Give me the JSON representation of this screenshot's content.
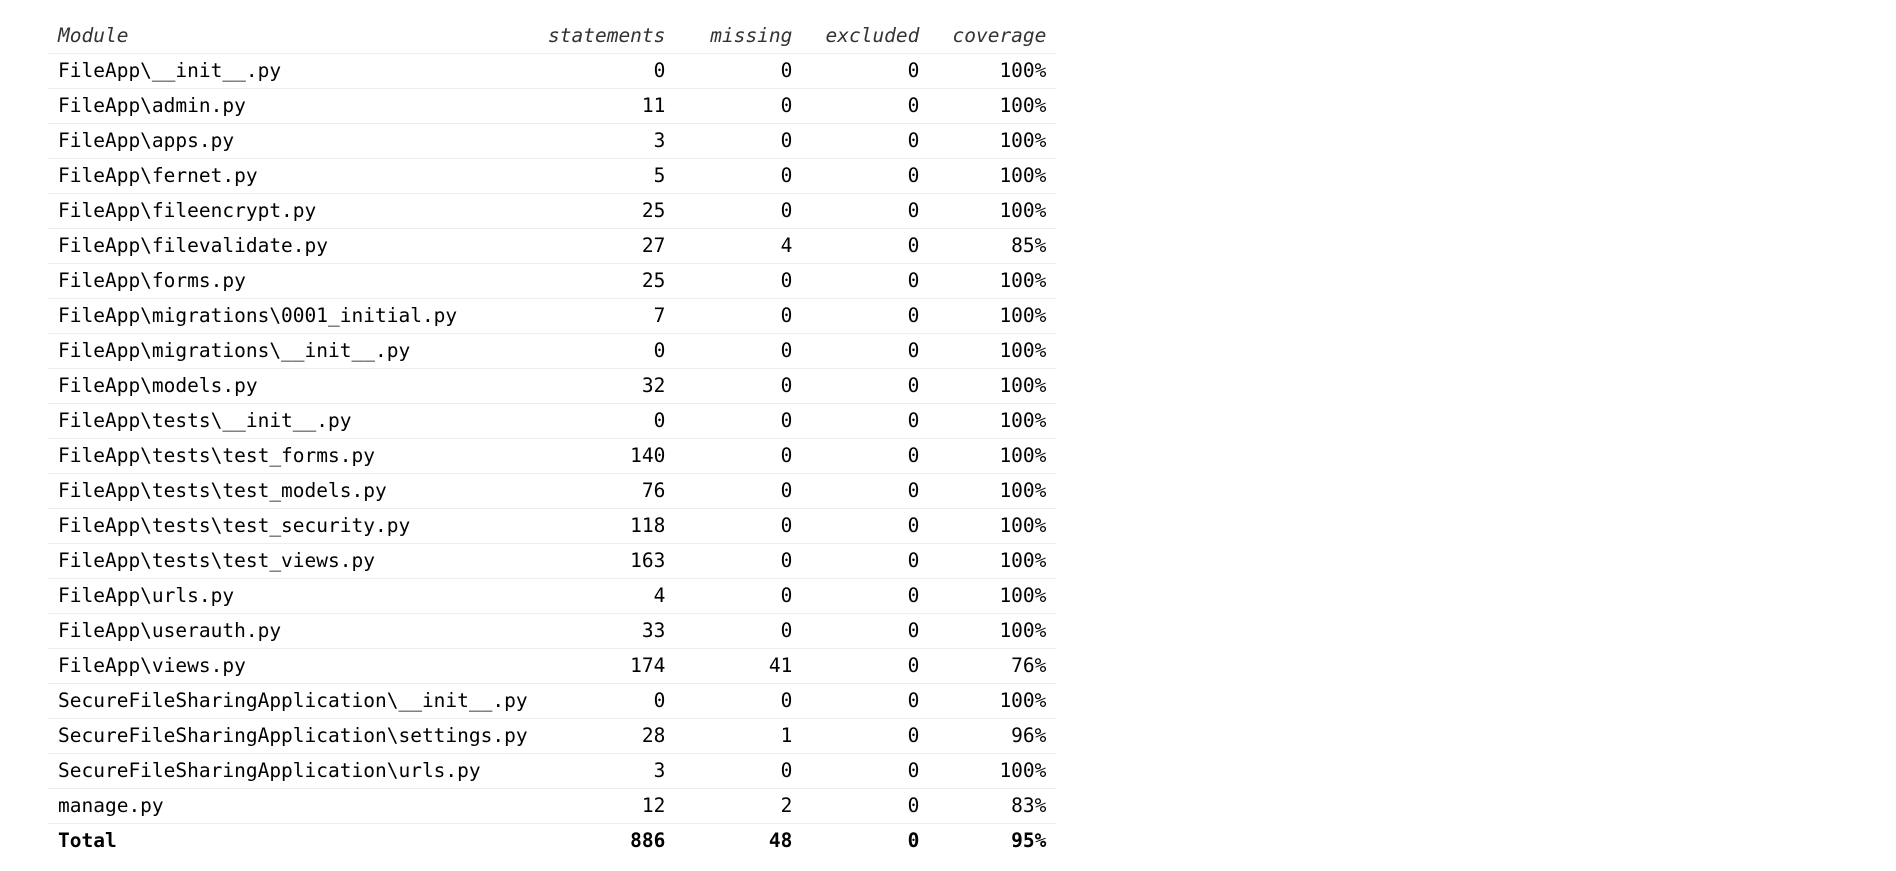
{
  "table": {
    "headers": {
      "module": "Module",
      "statements": "statements",
      "missing": "missing",
      "excluded": "excluded",
      "coverage": "coverage"
    },
    "rows": [
      {
        "module": "FileApp\\__init__.py",
        "statements": "0",
        "missing": "0",
        "excluded": "0",
        "coverage": "100%"
      },
      {
        "module": "FileApp\\admin.py",
        "statements": "11",
        "missing": "0",
        "excluded": "0",
        "coverage": "100%"
      },
      {
        "module": "FileApp\\apps.py",
        "statements": "3",
        "missing": "0",
        "excluded": "0",
        "coverage": "100%"
      },
      {
        "module": "FileApp\\fernet.py",
        "statements": "5",
        "missing": "0",
        "excluded": "0",
        "coverage": "100%"
      },
      {
        "module": "FileApp\\fileencrypt.py",
        "statements": "25",
        "missing": "0",
        "excluded": "0",
        "coverage": "100%"
      },
      {
        "module": "FileApp\\filevalidate.py",
        "statements": "27",
        "missing": "4",
        "excluded": "0",
        "coverage": "85%"
      },
      {
        "module": "FileApp\\forms.py",
        "statements": "25",
        "missing": "0",
        "excluded": "0",
        "coverage": "100%"
      },
      {
        "module": "FileApp\\migrations\\0001_initial.py",
        "statements": "7",
        "missing": "0",
        "excluded": "0",
        "coverage": "100%"
      },
      {
        "module": "FileApp\\migrations\\__init__.py",
        "statements": "0",
        "missing": "0",
        "excluded": "0",
        "coverage": "100%"
      },
      {
        "module": "FileApp\\models.py",
        "statements": "32",
        "missing": "0",
        "excluded": "0",
        "coverage": "100%"
      },
      {
        "module": "FileApp\\tests\\__init__.py",
        "statements": "0",
        "missing": "0",
        "excluded": "0",
        "coverage": "100%"
      },
      {
        "module": "FileApp\\tests\\test_forms.py",
        "statements": "140",
        "missing": "0",
        "excluded": "0",
        "coverage": "100%"
      },
      {
        "module": "FileApp\\tests\\test_models.py",
        "statements": "76",
        "missing": "0",
        "excluded": "0",
        "coverage": "100%"
      },
      {
        "module": "FileApp\\tests\\test_security.py",
        "statements": "118",
        "missing": "0",
        "excluded": "0",
        "coverage": "100%"
      },
      {
        "module": "FileApp\\tests\\test_views.py",
        "statements": "163",
        "missing": "0",
        "excluded": "0",
        "coverage": "100%"
      },
      {
        "module": "FileApp\\urls.py",
        "statements": "4",
        "missing": "0",
        "excluded": "0",
        "coverage": "100%"
      },
      {
        "module": "FileApp\\userauth.py",
        "statements": "33",
        "missing": "0",
        "excluded": "0",
        "coverage": "100%"
      },
      {
        "module": "FileApp\\views.py",
        "statements": "174",
        "missing": "41",
        "excluded": "0",
        "coverage": "76%"
      },
      {
        "module": "SecureFileSharingApplication\\__init__.py",
        "statements": "0",
        "missing": "0",
        "excluded": "0",
        "coverage": "100%"
      },
      {
        "module": "SecureFileSharingApplication\\settings.py",
        "statements": "28",
        "missing": "1",
        "excluded": "0",
        "coverage": "96%"
      },
      {
        "module": "SecureFileSharingApplication\\urls.py",
        "statements": "3",
        "missing": "0",
        "excluded": "0",
        "coverage": "100%"
      },
      {
        "module": "manage.py",
        "statements": "12",
        "missing": "2",
        "excluded": "0",
        "coverage": "83%"
      }
    ],
    "total": {
      "module": "Total",
      "statements": "886",
      "missing": "48",
      "excluded": "0",
      "coverage": "95%"
    }
  }
}
